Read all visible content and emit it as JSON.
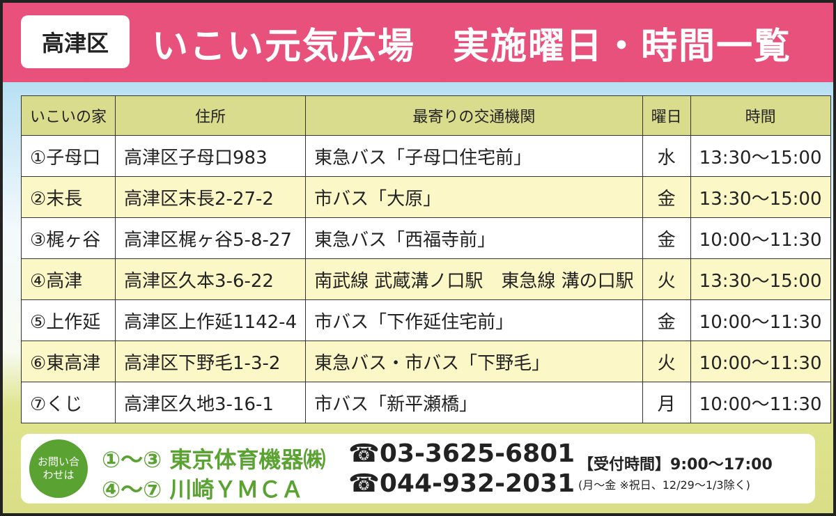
{
  "header": {
    "ward": "高津区",
    "title": "いこい元気広場　実施曜日・時間一覧"
  },
  "table": {
    "columns": [
      "いこいの家",
      "住所",
      "最寄りの交通機関",
      "曜日",
      "時間"
    ],
    "rows": [
      [
        "①子母口",
        "高津区子母口983",
        "東急バス「子母口住宅前」",
        "水",
        "13:30〜15:00"
      ],
      [
        "②末長",
        "高津区末長2-27-2",
        "市バス「大原」",
        "金",
        "13:30〜15:00"
      ],
      [
        "③梶ヶ谷",
        "高津区梶ヶ谷5-8-27",
        "東急バス「西福寺前」",
        "金",
        "10:00〜11:30"
      ],
      [
        "④高津",
        "高津区久本3-6-22",
        "南武線 武蔵溝ノ口駅　東急線 溝の口駅",
        "火",
        "13:30〜15:00"
      ],
      [
        "⑤上作延",
        "高津区上作延1142-4",
        "市バス「下作延住宅前」",
        "金",
        "10:00〜11:30"
      ],
      [
        "⑥東高津",
        "高津区下野毛1-3-2",
        "東急バス・市バス「下野毛」",
        "火",
        "10:00〜11:30"
      ],
      [
        "⑦くじ",
        "高津区久地3-16-1",
        "市バス「新平瀬橋」",
        "月",
        "10:00〜11:30"
      ]
    ]
  },
  "contact": {
    "badge": "お問い合わせは",
    "items": [
      {
        "org": "①〜③ 東京体育機器㈱",
        "tel": "☎03-3625-6801"
      },
      {
        "org": "④〜⑦ 川崎ＹＭＣＡ",
        "tel": "☎044-932-2031"
      }
    ],
    "hours": "【受付時間】9:00〜17:00",
    "note": "(月〜金 ※祝日、12/29〜1/3除く)"
  },
  "colors": {
    "header": "#e8517c",
    "accent_green": "#5aa232",
    "table_header": "#d8dc8c",
    "row_alt": "#fcf7c6"
  }
}
